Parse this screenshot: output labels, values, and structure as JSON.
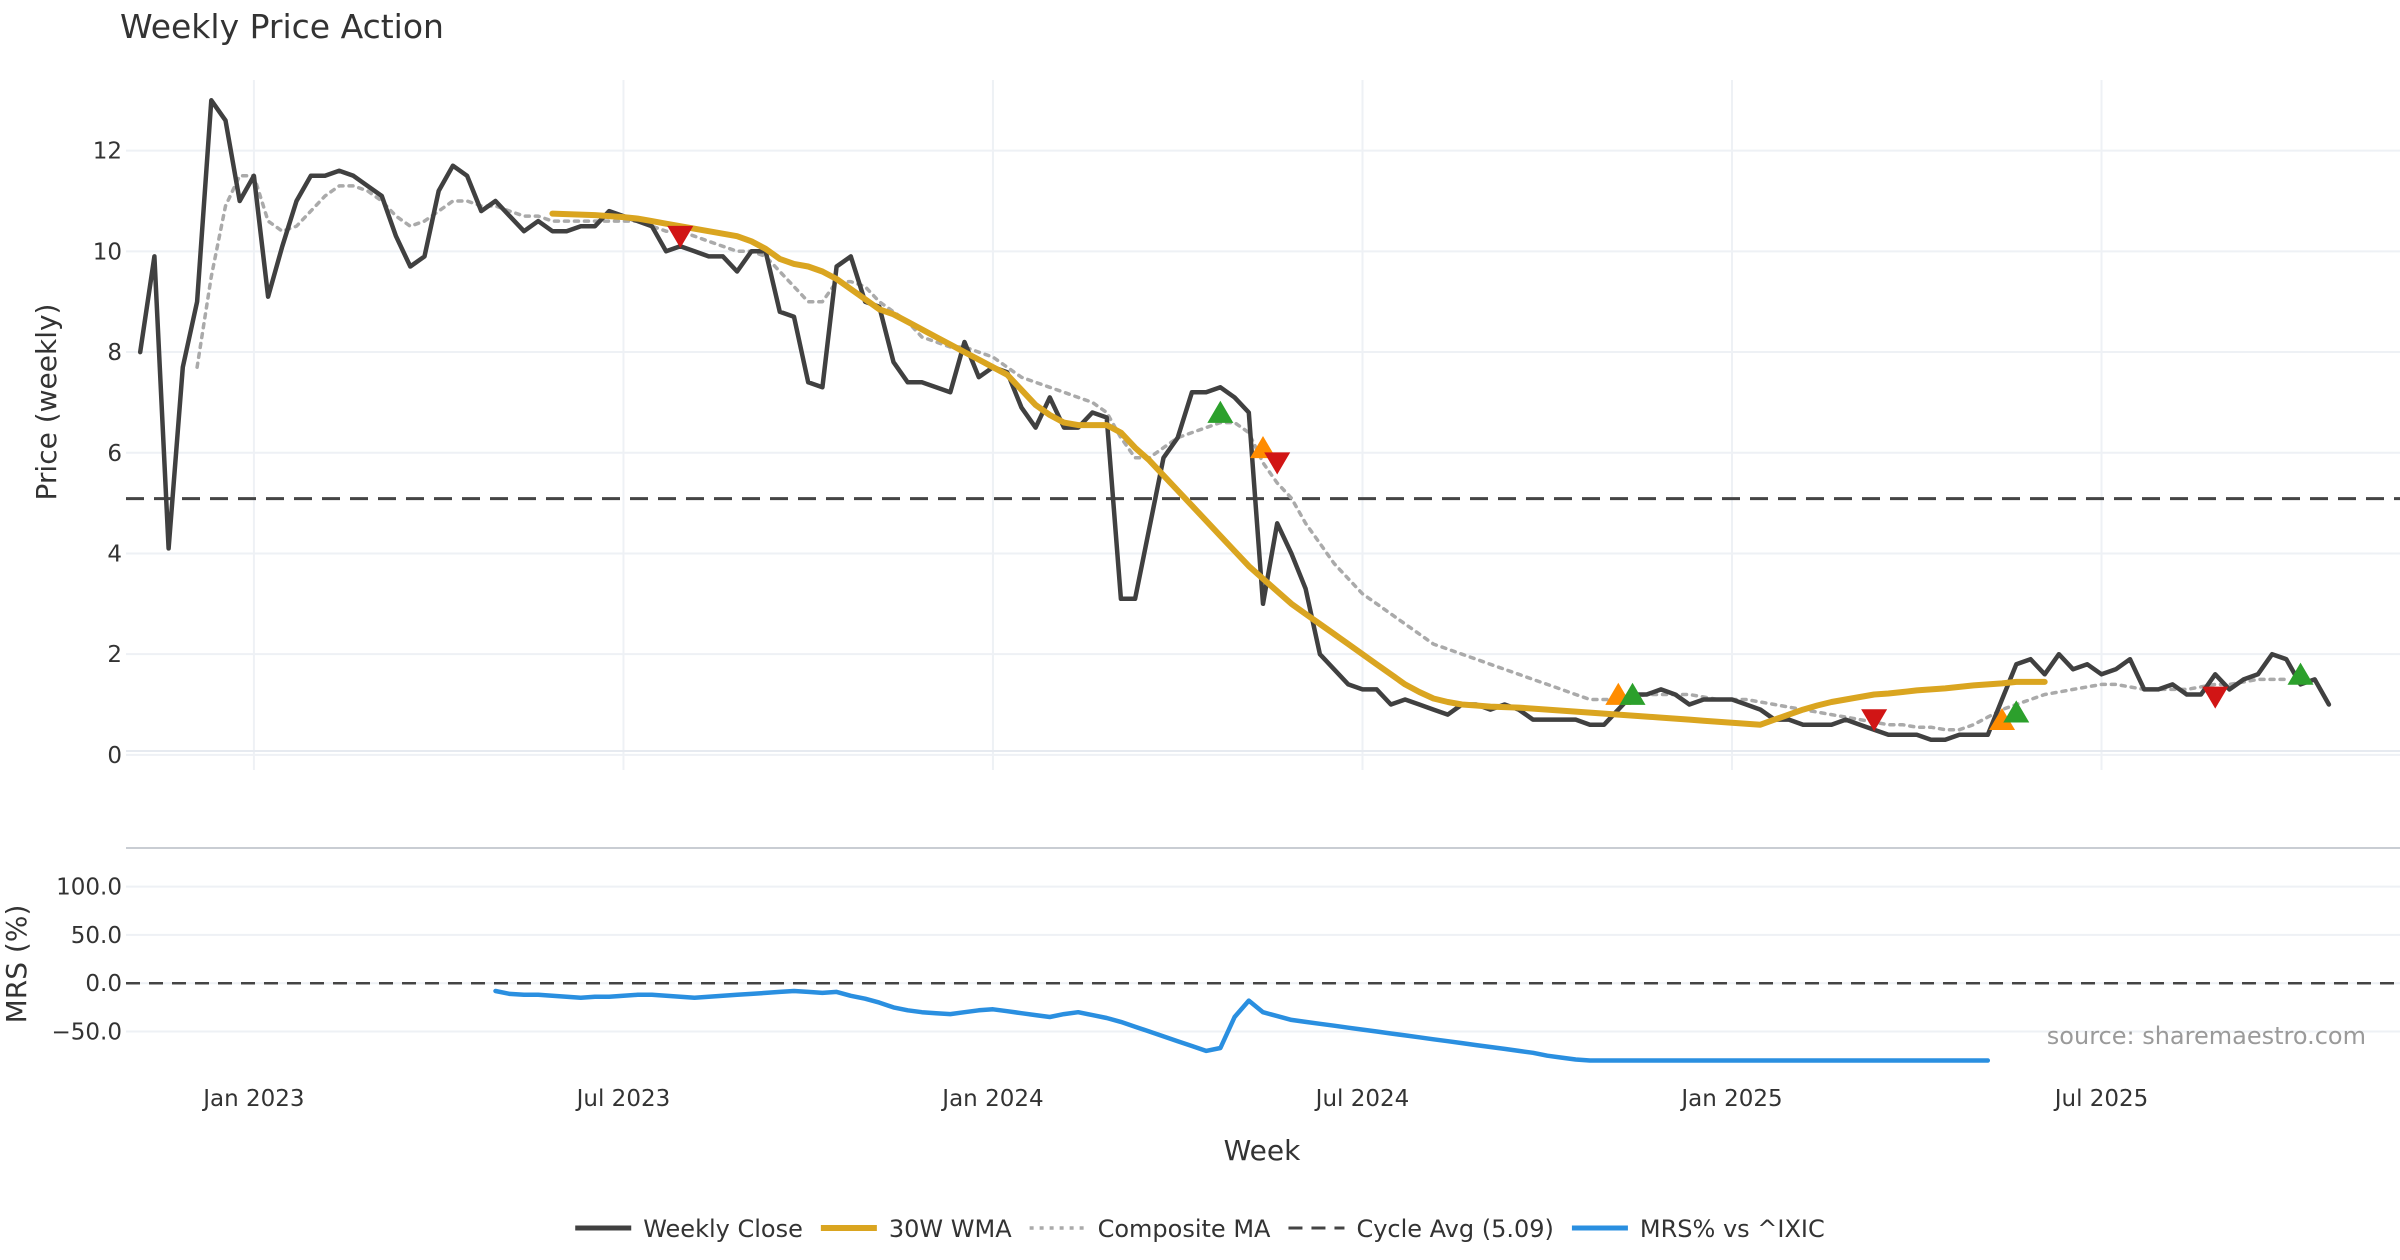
{
  "chart_data": {
    "type": "line",
    "title": "Weekly Price Action",
    "xlabel": "Week",
    "colors": {
      "weekly_close": "#404040",
      "wma": "#DAA520",
      "composite": "#aaaaaa",
      "cycle": "#444444",
      "mrs": "#2a8fe0",
      "buy": "#2ca02c",
      "sell": "#d11515",
      "caution": "#ff8c00",
      "grid": "#eef1f5"
    },
    "x_ticks": [
      "Jan 2023",
      "Jul 2023",
      "Jan 2024",
      "Jul 2024",
      "Jan 2025",
      "Jul 2025"
    ],
    "weeks": {
      "first_week": 0,
      "last_week": 155,
      "x_range": [
        -1,
        159
      ],
      "tick_weeks": [
        8,
        34,
        60,
        86,
        112,
        138
      ]
    },
    "price_panel": {
      "ylabel": "Price (weekly)",
      "ylim": [
        -0.3,
        13.8
      ],
      "y_ticks": [
        0,
        2,
        4,
        6,
        8,
        10,
        12
      ],
      "cycle_avg": 5.09
    },
    "mrs_panel": {
      "ylabel": "MRS (%)",
      "ylim": [
        -95,
        140
      ],
      "y_ticks": [
        "100.0",
        "50.0",
        "0.0",
        "−50.0"
      ],
      "y_tick_values": [
        100,
        50,
        0,
        -50
      ]
    },
    "legend": [
      "Weekly Close",
      "30W WMA",
      "Composite MA",
      "Cycle Avg (5.09)",
      "MRS% vs ^IXIC"
    ],
    "annotation": "source: sharemaestro.com",
    "series": {
      "weekly_close": [
        8.0,
        9.9,
        4.1,
        7.7,
        9.0,
        13.0,
        12.6,
        11.0,
        11.5,
        9.1,
        10.1,
        11.0,
        11.5,
        11.5,
        11.6,
        11.5,
        11.3,
        11.1,
        10.3,
        9.7,
        9.9,
        11.2,
        11.7,
        11.5,
        10.8,
        11.0,
        10.7,
        10.4,
        10.6,
        10.4,
        10.4,
        10.5,
        10.5,
        10.8,
        10.7,
        10.6,
        10.5,
        10.0,
        10.1,
        10.0,
        9.9,
        9.9,
        9.6,
        10.0,
        10.0,
        8.8,
        8.7,
        7.4,
        7.3,
        9.7,
        9.9,
        9.0,
        8.9,
        7.8,
        7.4,
        7.4,
        7.3,
        7.2,
        8.2,
        7.5,
        7.7,
        7.6,
        6.9,
        6.5,
        7.1,
        6.5,
        6.5,
        6.8,
        6.7,
        3.1,
        3.1,
        4.5,
        5.9,
        6.3,
        7.2,
        7.2,
        7.3,
        7.1,
        6.8,
        3.0,
        4.6,
        4.0,
        3.3,
        2.0,
        1.7,
        1.4,
        1.3,
        1.3,
        1.0,
        1.1,
        1.0,
        0.9,
        0.8,
        1.0,
        1.0,
        0.9,
        1.0,
        0.9,
        0.7,
        0.7,
        0.7,
        0.7,
        0.6,
        0.6,
        0.9,
        1.2,
        1.2,
        1.3,
        1.2,
        1.0,
        1.1,
        1.1,
        1.1,
        1.0,
        0.9,
        0.7,
        0.7,
        0.6,
        0.6,
        0.6,
        0.7,
        0.6,
        0.5,
        0.4,
        0.4,
        0.4,
        0.3,
        0.3,
        0.4,
        0.4,
        0.4,
        1.1,
        1.8,
        1.9,
        1.6,
        2.0,
        1.7,
        1.8,
        1.6,
        1.7,
        1.9,
        1.3,
        1.3,
        1.4,
        1.2,
        1.2,
        1.6,
        1.3,
        1.5,
        1.6,
        2.0,
        1.9,
        1.4,
        1.5,
        1.0
      ],
      "composite_ma": [
        null,
        null,
        null,
        null,
        7.7,
        9.5,
        10.9,
        11.5,
        11.5,
        10.6,
        10.4,
        10.5,
        10.8,
        11.1,
        11.3,
        11.3,
        11.2,
        11.0,
        10.7,
        10.5,
        10.6,
        10.8,
        11.0,
        11.0,
        10.9,
        10.9,
        10.8,
        10.7,
        10.7,
        10.6,
        10.6,
        10.6,
        10.6,
        10.6,
        10.6,
        10.6,
        10.5,
        10.4,
        10.4,
        10.3,
        10.2,
        10.1,
        10.0,
        10.0,
        9.9,
        9.6,
        9.3,
        9.0,
        9.0,
        9.4,
        9.4,
        9.3,
        9.0,
        8.8,
        8.6,
        8.3,
        8.2,
        8.1,
        8.1,
        8.0,
        7.9,
        7.7,
        7.5,
        7.4,
        7.3,
        7.2,
        7.1,
        7.0,
        6.8,
        6.3,
        5.9,
        5.9,
        6.1,
        6.3,
        6.4,
        6.5,
        6.6,
        6.6,
        6.4,
        5.8,
        5.4,
        5.1,
        4.6,
        4.2,
        3.8,
        3.5,
        3.2,
        3.0,
        2.8,
        2.6,
        2.4,
        2.2,
        2.1,
        2.0,
        1.9,
        1.8,
        1.7,
        1.6,
        1.5,
        1.4,
        1.3,
        1.2,
        1.1,
        1.1,
        1.1,
        1.15,
        1.2,
        1.2,
        1.2,
        1.2,
        1.15,
        1.1,
        1.1,
        1.1,
        1.05,
        1.0,
        0.95,
        0.9,
        0.85,
        0.8,
        0.75,
        0.7,
        0.65,
        0.6,
        0.6,
        0.55,
        0.55,
        0.5,
        0.5,
        0.6,
        0.75,
        0.9,
        1.0,
        1.1,
        1.2,
        1.25,
        1.3,
        1.35,
        1.4,
        1.4,
        1.35,
        1.3,
        1.3,
        1.3,
        1.3,
        1.35,
        1.4,
        1.4,
        1.45,
        1.5,
        1.5,
        1.5
      ],
      "wma_30w": [
        null,
        null,
        null,
        null,
        null,
        null,
        null,
        null,
        null,
        null,
        null,
        null,
        null,
        null,
        null,
        null,
        null,
        null,
        null,
        null,
        null,
        null,
        null,
        null,
        null,
        null,
        null,
        null,
        null,
        10.75,
        10.74,
        10.73,
        10.72,
        10.7,
        10.68,
        10.65,
        10.6,
        10.55,
        10.5,
        10.45,
        10.4,
        10.35,
        10.3,
        10.2,
        10.05,
        9.85,
        9.75,
        9.7,
        9.6,
        9.45,
        9.25,
        9.05,
        8.85,
        8.75,
        8.6,
        8.45,
        8.3,
        8.15,
        8.0,
        7.85,
        7.7,
        7.55,
        7.25,
        6.95,
        6.75,
        6.6,
        6.55,
        6.55,
        6.55,
        6.4,
        6.1,
        5.85,
        5.55,
        5.25,
        4.95,
        4.65,
        4.35,
        4.05,
        3.75,
        3.5,
        3.25,
        3.0,
        2.8,
        2.6,
        2.4,
        2.2,
        2.0,
        1.8,
        1.6,
        1.4,
        1.25,
        1.12,
        1.05,
        1.0,
        0.98,
        0.96,
        0.95,
        0.94,
        0.92,
        0.9,
        0.88,
        0.86,
        0.84,
        0.82,
        0.8,
        0.78,
        0.76,
        0.74,
        0.72,
        0.7,
        0.68,
        0.66,
        0.64,
        0.62,
        0.6,
        0.7,
        0.8,
        0.9,
        0.98,
        1.05,
        1.1,
        1.15,
        1.2,
        1.22,
        1.25,
        1.28,
        1.3,
        1.32,
        1.35,
        1.38,
        1.4,
        1.42,
        1.45,
        1.45,
        1.45
      ],
      "mrs": [
        -8,
        -11,
        -12,
        -12,
        -13,
        -14,
        -15,
        -14,
        -14,
        -13,
        -12,
        -12,
        -13,
        -14,
        -15,
        -14,
        -13,
        -12,
        -11,
        -10,
        -9,
        -8,
        -9,
        -10,
        -9,
        -13,
        -16,
        -20,
        -25,
        -28,
        -30,
        -31,
        -32,
        -30,
        -28,
        -27,
        -29,
        -31,
        -33,
        -35,
        -32,
        -30,
        -33,
        -36,
        -40,
        -45,
        -50,
        -55,
        -60,
        -65,
        -70,
        -67,
        -35,
        -18,
        -30,
        -34,
        -38,
        -40,
        -42,
        -44,
        -46,
        -48,
        -50,
        -52,
        -54,
        -56,
        -58,
        -60,
        -62,
        -64,
        -66,
        -68,
        -70,
        -72,
        -75,
        -77,
        -79,
        -80,
        -80,
        -80,
        -80,
        -80,
        -80,
        -80,
        -80,
        -80,
        -80,
        -80,
        -80,
        -80,
        -80,
        -80,
        -80,
        -80,
        -80,
        -80,
        -80,
        -80,
        -80,
        -80,
        -80,
        -80,
        -80,
        -80,
        -80,
        -80
      ],
      "mrs_x_offset": 25
    },
    "signals": [
      {
        "type": "sell",
        "week": 38,
        "value": 10.3
      },
      {
        "type": "buy",
        "week": 76,
        "value": 6.8
      },
      {
        "type": "caution",
        "week": 79,
        "value": 6.1
      },
      {
        "type": "sell",
        "week": 80,
        "value": 5.8
      },
      {
        "type": "caution",
        "week": 104,
        "value": 1.2
      },
      {
        "type": "buy",
        "week": 105,
        "value": 1.2
      },
      {
        "type": "sell",
        "week": 122,
        "value": 0.7
      },
      {
        "type": "caution",
        "week": 131,
        "value": 0.7
      },
      {
        "type": "buy",
        "week": 132,
        "value": 0.85
      },
      {
        "type": "sell",
        "week": 146,
        "value": 1.15
      },
      {
        "type": "buy",
        "week": 152,
        "value": 1.6
      }
    ]
  }
}
